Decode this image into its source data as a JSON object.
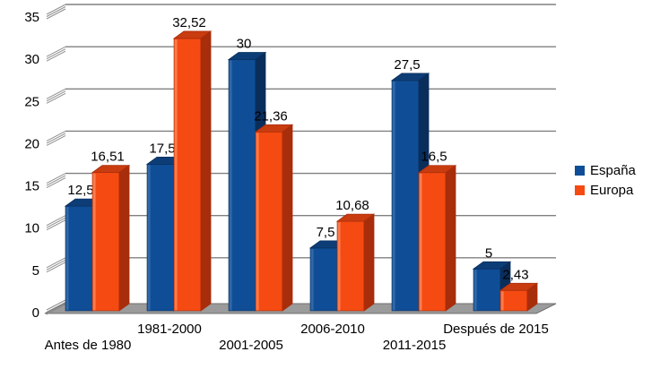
{
  "chart_data": {
    "type": "bar",
    "style": "3d-column",
    "title": "",
    "xlabel": "",
    "ylabel": "",
    "categories": [
      "Antes de 1980",
      "1981-2000",
      "2001-2005",
      "2006-2010",
      "2011-2015",
      "Después de 2015"
    ],
    "series": [
      {
        "name": "España",
        "color": "#0F4E96",
        "color_side": "#0A2E5C",
        "color_top": "#0D3D77",
        "color_bevel": "#3068A8",
        "values": [
          12.5,
          17.5,
          30,
          7.5,
          27.5,
          5
        ],
        "labels": [
          "12,5",
          "17,5",
          "30",
          "7,5",
          "27,5",
          "5"
        ]
      },
      {
        "name": "Europa",
        "color": "#F54A12",
        "color_side": "#A82D0B",
        "color_top": "#C93C10",
        "color_bevel": "#FA7B4B",
        "values": [
          16.51,
          32.52,
          21.36,
          10.68,
          16.5,
          2.43
        ],
        "labels": [
          "16,51",
          "32,52",
          "21,36",
          "10,68",
          "16,5",
          "2,43"
        ]
      }
    ],
    "y_axis": {
      "ylim": [
        0,
        35
      ],
      "ticks": [
        0,
        5,
        10,
        15,
        20,
        25,
        30,
        35
      ],
      "labels": [
        "0",
        "5",
        "10",
        "15",
        "20",
        "25",
        "30",
        "35"
      ]
    },
    "grid": true,
    "legend_position": "right",
    "grid_color": "#808080",
    "tick_color": "#8F8F8F",
    "floor_color": "#9B9B9B",
    "floor_edge_color": "#707070",
    "background": "#FFFFFF",
    "text_color": "#000000"
  }
}
